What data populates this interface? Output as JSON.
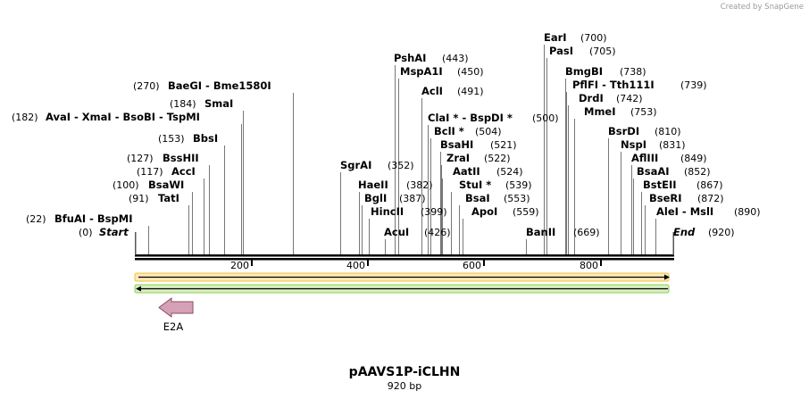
{
  "credit": "Created by SnapGene",
  "plasmid": {
    "name": "pAAVS1P-iCLHN",
    "length": "920 bp"
  },
  "backbone": {
    "start_label": "Start",
    "start_pos": "(0)",
    "end_label": "End",
    "end_pos": "(920)"
  },
  "ticks": [
    "200",
    "400",
    "600",
    "800"
  ],
  "colors": {
    "strand_fwd": "#f2c23a",
    "strand_rev": "#8ccc52",
    "feature_fill": "#d4a1b6",
    "feature_stroke": "#8b4b63",
    "site_line": "#777777"
  },
  "feature": {
    "name": "E2A",
    "icon": "left-arrow-feature-icon"
  },
  "sites": [
    {
      "label": "BfuAI  -  BspMI",
      "pos": "(22)"
    },
    {
      "label": "TatI",
      "pos": "(91)"
    },
    {
      "label": "BsaWI",
      "pos": "(100)"
    },
    {
      "label": "AccI",
      "pos": "(117)"
    },
    {
      "label": "BssHII",
      "pos": "(127)"
    },
    {
      "label": "BbsI",
      "pos": "(153)"
    },
    {
      "label": "AvaI  -  XmaI  -  BsoBI  -  TspMI",
      "pos": "(182)"
    },
    {
      "label": "SmaI",
      "pos": "(184)"
    },
    {
      "label": "BaeGI  -  Bme1580I",
      "pos": "(270)"
    },
    {
      "label": "SgrAI",
      "pos": "(352)"
    },
    {
      "label": "HaeII",
      "pos": "(382)"
    },
    {
      "label": "BglI",
      "pos": "(387)"
    },
    {
      "label": "HincII",
      "pos": "(399)"
    },
    {
      "label": "AcuI",
      "pos": "(426)"
    },
    {
      "label": "PshAI",
      "pos": "(443)"
    },
    {
      "label": "MspA1I",
      "pos": "(450)"
    },
    {
      "label": "AclI",
      "pos": "(491)"
    },
    {
      "label": "ClaI *  -  BspDI *",
      "pos": "(500)"
    },
    {
      "label": "BclI *",
      "pos": "(504)"
    },
    {
      "label": "BsaHI",
      "pos": "(521)"
    },
    {
      "label": "ZraI",
      "pos": "(522)"
    },
    {
      "label": "AatII",
      "pos": "(524)"
    },
    {
      "label": "StuI *",
      "pos": "(539)"
    },
    {
      "label": "BsaI",
      "pos": "(553)"
    },
    {
      "label": "ApoI",
      "pos": "(559)"
    },
    {
      "label": "BanII",
      "pos": "(669)"
    },
    {
      "label": "EarI",
      "pos": "(700)"
    },
    {
      "label": "PasI",
      "pos": "(705)"
    },
    {
      "label": "BmgBI",
      "pos": "(738)"
    },
    {
      "label": "PflFI  -  Tth111I",
      "pos": "(739)"
    },
    {
      "label": "DrdI",
      "pos": "(742)"
    },
    {
      "label": "MmeI",
      "pos": "(753)"
    },
    {
      "label": "BsrDI",
      "pos": "(810)"
    },
    {
      "label": "NspI",
      "pos": "(831)"
    },
    {
      "label": "AflIII",
      "pos": "(849)"
    },
    {
      "label": "BsaAI",
      "pos": "(852)"
    },
    {
      "label": "BstEII",
      "pos": "(867)"
    },
    {
      "label": "BseRI",
      "pos": "(872)"
    },
    {
      "label": "AleI  -  MslI",
      "pos": "(890)"
    }
  ]
}
